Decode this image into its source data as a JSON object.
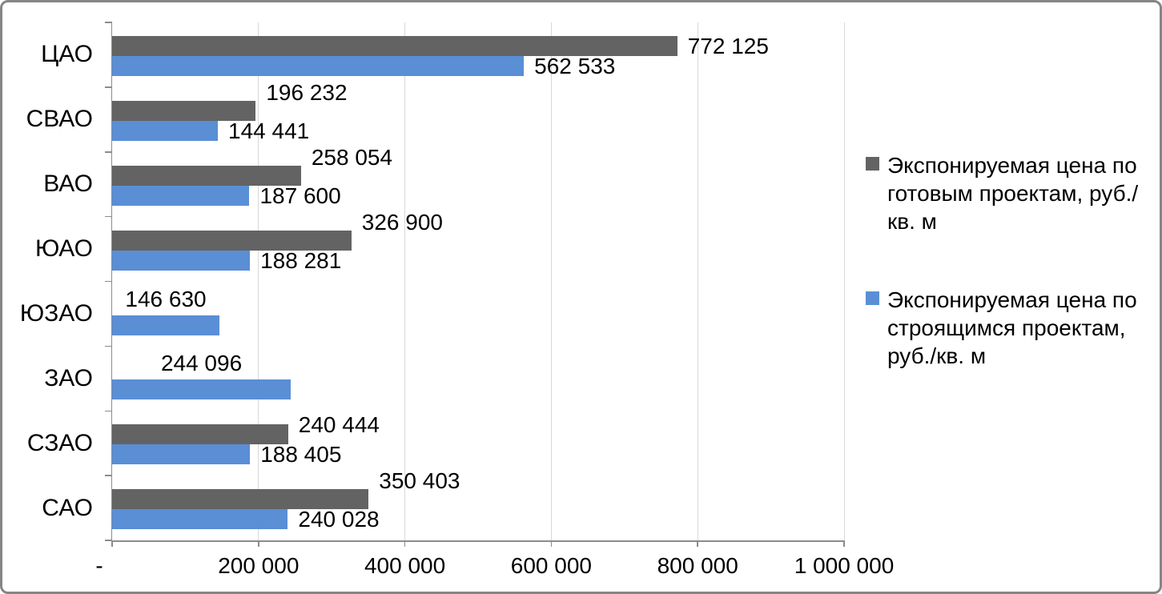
{
  "chart_data": {
    "type": "bar",
    "orientation": "horizontal",
    "categories": [
      "ЦАО",
      "СВАО",
      "ВАО",
      "ЮАО",
      "ЮЗАО",
      "ЗАО",
      "СЗАО",
      "САО"
    ],
    "series": [
      {
        "name": "Экспонируемая цена по готовым проектам, руб./кв. м",
        "color": "#636363",
        "values": [
          772125,
          196232,
          258054,
          326900,
          null,
          null,
          240444,
          350403
        ],
        "labels": [
          "772 125",
          "196 232",
          "258 054",
          "326 900",
          "",
          "",
          "240 444",
          "350 403"
        ],
        "label_positions": [
          "mid",
          "above",
          "above",
          "above",
          "",
          "",
          "edge",
          "above"
        ]
      },
      {
        "name": "Экспонируемая цена по строящимся проектам, руб./кв. м",
        "color": "#5A8ED5",
        "values": [
          562533,
          144441,
          187600,
          188281,
          146630,
          244096,
          188405,
          240028
        ],
        "labels": [
          "562 533",
          "144 441",
          "187 600",
          "188 281",
          "146 630",
          "244 096",
          "188 405",
          "240 028"
        ],
        "label_positions": [
          "mid",
          "mid",
          "mid",
          "mid",
          "above-center",
          "above-center",
          "mid",
          "mid"
        ]
      }
    ],
    "x_axis": {
      "min": 0,
      "max": 1000000,
      "tick_step": 200000,
      "tick_labels": [
        "-",
        "200 000",
        "400 000",
        "600 000",
        "800 000",
        "1 000 000"
      ],
      "gridlines": true
    },
    "legend": {
      "position": "right",
      "items": [
        {
          "label": "Экспонируемая цена по готовым проектам, руб./кв. м",
          "color": "#636363"
        },
        {
          "label": "Экспонируемая цена по строящимся проектам, руб./кв. м",
          "color": "#5A8ED5"
        }
      ]
    }
  }
}
